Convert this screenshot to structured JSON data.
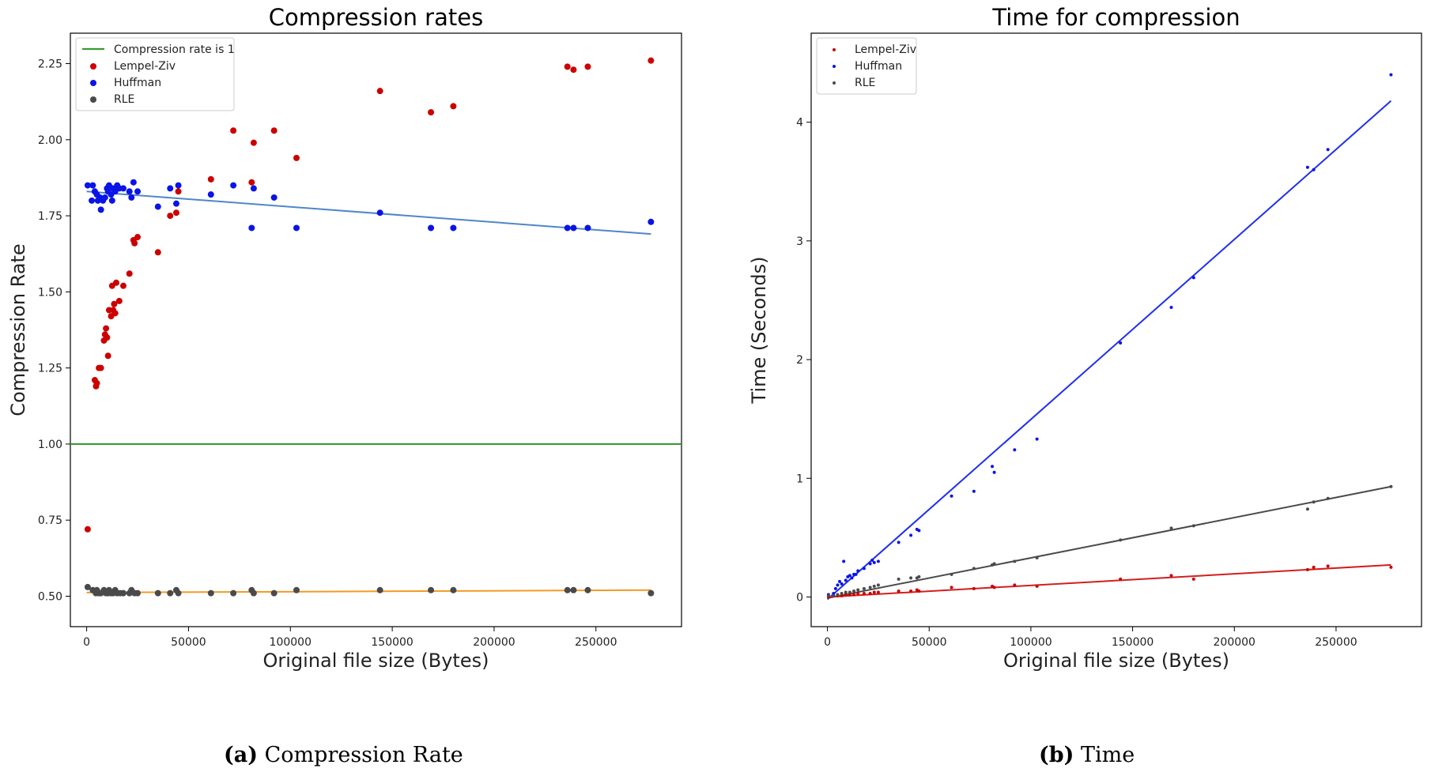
{
  "captions": {
    "a_label": "(a)",
    "a_text": "Compression Rate",
    "b_label": "(b)",
    "b_text": "Time"
  },
  "chart_data": [
    {
      "type": "scatter",
      "title": "Compression rates",
      "xlabel": "Original file size (Bytes)",
      "ylabel": "Compression Rate",
      "xlim": [
        -8000,
        292000
      ],
      "ylim": [
        0.4,
        2.35
      ],
      "xticks": [
        0,
        50000,
        100000,
        150000,
        200000,
        250000
      ],
      "yticks": [
        0.5,
        0.75,
        1.0,
        1.25,
        1.5,
        1.75,
        2.0,
        2.25
      ],
      "ytick_decimals": 2,
      "grid": false,
      "legend_position": "top-left",
      "legend_order": [
        "Compression rate is 1",
        "Lempel-Ziv",
        "Huffman",
        "RLE"
      ],
      "hlines": [
        {
          "name": "Compression rate is 1",
          "y": 1.0,
          "color": "#3a9a32"
        }
      ],
      "series": [
        {
          "name": "Lempel-Ziv",
          "color": "#cc0000",
          "marker_r": 4,
          "points": [
            [
              500,
              0.72
            ],
            [
              4000,
              1.21
            ],
            [
              4600,
              1.19
            ],
            [
              5000,
              1.2
            ],
            [
              6000,
              1.25
            ],
            [
              7000,
              1.25
            ],
            [
              8500,
              1.34
            ],
            [
              9000,
              1.36
            ],
            [
              9500,
              1.38
            ],
            [
              10000,
              1.35
            ],
            [
              10500,
              1.29
            ],
            [
              11000,
              1.44
            ],
            [
              12000,
              1.42
            ],
            [
              12500,
              1.52
            ],
            [
              13000,
              1.44
            ],
            [
              13500,
              1.46
            ],
            [
              14000,
              1.43
            ],
            [
              14500,
              1.53
            ],
            [
              16000,
              1.47
            ],
            [
              18000,
              1.52
            ],
            [
              21000,
              1.56
            ],
            [
              23000,
              1.67
            ],
            [
              23500,
              1.66
            ],
            [
              25000,
              1.68
            ],
            [
              35000,
              1.63
            ],
            [
              41000,
              1.75
            ],
            [
              44000,
              1.76
            ],
            [
              45000,
              1.83
            ],
            [
              61000,
              1.87
            ],
            [
              72000,
              2.03
            ],
            [
              81000,
              1.86
            ],
            [
              82000,
              1.99
            ],
            [
              92000,
              2.03
            ],
            [
              103000,
              1.94
            ],
            [
              144000,
              2.16
            ],
            [
              169000,
              2.09
            ],
            [
              180000,
              2.11
            ],
            [
              236000,
              2.24
            ],
            [
              239000,
              2.23
            ],
            [
              246000,
              2.24
            ],
            [
              277000,
              2.26
            ]
          ]
        },
        {
          "name": "Huffman",
          "color": "#0a14e6",
          "marker_r": 4,
          "points": [
            [
              500,
              1.85
            ],
            [
              2500,
              1.8
            ],
            [
              3000,
              1.85
            ],
            [
              4000,
              1.83
            ],
            [
              5000,
              1.82
            ],
            [
              5500,
              1.8
            ],
            [
              6500,
              1.81
            ],
            [
              7000,
              1.77
            ],
            [
              8000,
              1.8
            ],
            [
              9000,
              1.81
            ],
            [
              10000,
              1.84
            ],
            [
              10500,
              1.83
            ],
            [
              11000,
              1.85
            ],
            [
              12000,
              1.82
            ],
            [
              12500,
              1.8
            ],
            [
              13000,
              1.84
            ],
            [
              14000,
              1.83
            ],
            [
              15000,
              1.85
            ],
            [
              16000,
              1.84
            ],
            [
              18000,
              1.84
            ],
            [
              21000,
              1.83
            ],
            [
              22000,
              1.81
            ],
            [
              23000,
              1.86
            ],
            [
              25000,
              1.83
            ],
            [
              35000,
              1.78
            ],
            [
              41000,
              1.84
            ],
            [
              44000,
              1.79
            ],
            [
              45000,
              1.85
            ],
            [
              61000,
              1.82
            ],
            [
              72000,
              1.85
            ],
            [
              81000,
              1.71
            ],
            [
              82000,
              1.84
            ],
            [
              92000,
              1.81
            ],
            [
              103000,
              1.71
            ],
            [
              144000,
              1.76
            ],
            [
              169000,
              1.71
            ],
            [
              180000,
              1.71
            ],
            [
              236000,
              1.71
            ],
            [
              239000,
              1.71
            ],
            [
              246000,
              1.71
            ],
            [
              277000,
              1.73
            ]
          ]
        },
        {
          "name": "RLE",
          "color": "#4a4a4a",
          "marker_r": 4,
          "points": [
            [
              500,
              0.53
            ],
            [
              3000,
              0.52
            ],
            [
              4500,
              0.51
            ],
            [
              5000,
              0.52
            ],
            [
              6000,
              0.51
            ],
            [
              7000,
              0.51
            ],
            [
              8500,
              0.52
            ],
            [
              9500,
              0.51
            ],
            [
              10500,
              0.51
            ],
            [
              11000,
              0.52
            ],
            [
              12000,
              0.51
            ],
            [
              13000,
              0.51
            ],
            [
              14000,
              0.52
            ],
            [
              15000,
              0.51
            ],
            [
              16500,
              0.51
            ],
            [
              18000,
              0.51
            ],
            [
              21000,
              0.51
            ],
            [
              22000,
              0.52
            ],
            [
              23500,
              0.51
            ],
            [
              25000,
              0.51
            ],
            [
              35000,
              0.51
            ],
            [
              41000,
              0.51
            ],
            [
              44000,
              0.52
            ],
            [
              45000,
              0.51
            ],
            [
              61000,
              0.51
            ],
            [
              72000,
              0.51
            ],
            [
              81000,
              0.52
            ],
            [
              82000,
              0.51
            ],
            [
              92000,
              0.51
            ],
            [
              103000,
              0.52
            ],
            [
              144000,
              0.52
            ],
            [
              169000,
              0.52
            ],
            [
              180000,
              0.52
            ],
            [
              236000,
              0.52
            ],
            [
              239000,
              0.52
            ],
            [
              246000,
              0.52
            ],
            [
              277000,
              0.51
            ]
          ]
        }
      ],
      "fit_lines": [
        {
          "color": "#4f86c9",
          "from": [
            0,
            1.83
          ],
          "to": [
            277000,
            1.69
          ]
        },
        {
          "color": "#f39a24",
          "from": [
            0,
            0.512
          ],
          "to": [
            277000,
            0.52
          ]
        }
      ]
    },
    {
      "type": "scatter",
      "title": "Time for compression",
      "xlabel": "Original file size (Bytes)",
      "ylabel": "Time (Seconds)",
      "xlim": [
        -8000,
        292000
      ],
      "ylim": [
        -0.25,
        4.75
      ],
      "xticks": [
        0,
        50000,
        100000,
        150000,
        200000,
        250000
      ],
      "yticks": [
        0,
        1,
        2,
        3,
        4
      ],
      "ytick_decimals": 0,
      "grid": false,
      "legend_position": "top-left",
      "legend_order": [
        "Lempel-Ziv",
        "Huffman",
        "RLE"
      ],
      "hlines": [],
      "series": [
        {
          "name": "Lempel-Ziv",
          "color": "#cc0000",
          "marker_r": 2,
          "points": [
            [
              500,
              0.0
            ],
            [
              3000,
              0.01
            ],
            [
              5000,
              0.01
            ],
            [
              7000,
              0.01
            ],
            [
              9000,
              0.02
            ],
            [
              11000,
              0.02
            ],
            [
              13000,
              0.02
            ],
            [
              15000,
              0.03
            ],
            [
              18000,
              0.03
            ],
            [
              21000,
              0.03
            ],
            [
              23000,
              0.04
            ],
            [
              25000,
              0.04
            ],
            [
              35000,
              0.05
            ],
            [
              41000,
              0.05
            ],
            [
              44000,
              0.06
            ],
            [
              45000,
              0.05
            ],
            [
              61000,
              0.08
            ],
            [
              72000,
              0.07
            ],
            [
              81000,
              0.09
            ],
            [
              82000,
              0.08
            ],
            [
              92000,
              0.1
            ],
            [
              103000,
              0.09
            ],
            [
              144000,
              0.15
            ],
            [
              169000,
              0.18
            ],
            [
              180000,
              0.15
            ],
            [
              236000,
              0.23
            ],
            [
              239000,
              0.25
            ],
            [
              246000,
              0.26
            ],
            [
              277000,
              0.25
            ]
          ]
        },
        {
          "name": "Huffman",
          "color": "#0a14e6",
          "marker_r": 2,
          "points": [
            [
              500,
              0.02
            ],
            [
              3000,
              0.03
            ],
            [
              4000,
              0.07
            ],
            [
              5000,
              0.1
            ],
            [
              6000,
              0.13
            ],
            [
              7000,
              0.11
            ],
            [
              8000,
              0.3
            ],
            [
              9000,
              0.14
            ],
            [
              10000,
              0.17
            ],
            [
              11000,
              0.18
            ],
            [
              12000,
              0.16
            ],
            [
              13000,
              0.19
            ],
            [
              14000,
              0.19
            ],
            [
              15000,
              0.22
            ],
            [
              18000,
              0.24
            ],
            [
              21000,
              0.28
            ],
            [
              22000,
              0.31
            ],
            [
              23000,
              0.29
            ],
            [
              25000,
              0.3
            ],
            [
              35000,
              0.46
            ],
            [
              41000,
              0.52
            ],
            [
              44000,
              0.57
            ],
            [
              45000,
              0.56
            ],
            [
              61000,
              0.85
            ],
            [
              72000,
              0.89
            ],
            [
              81000,
              1.1
            ],
            [
              82000,
              1.05
            ],
            [
              92000,
              1.24
            ],
            [
              103000,
              1.33
            ],
            [
              144000,
              2.14
            ],
            [
              169000,
              2.44
            ],
            [
              180000,
              2.69
            ],
            [
              236000,
              3.62
            ],
            [
              239000,
              3.6
            ],
            [
              246000,
              3.77
            ],
            [
              277000,
              4.4
            ]
          ]
        },
        {
          "name": "RLE",
          "color": "#4a4a4a",
          "marker_r": 2,
          "points": [
            [
              500,
              0.01
            ],
            [
              3000,
              0.01
            ],
            [
              5000,
              0.02
            ],
            [
              7000,
              0.03
            ],
            [
              9000,
              0.04
            ],
            [
              11000,
              0.04
            ],
            [
              13000,
              0.05
            ],
            [
              15000,
              0.06
            ],
            [
              18000,
              0.07
            ],
            [
              21000,
              0.08
            ],
            [
              23000,
              0.09
            ],
            [
              25000,
              0.1
            ],
            [
              35000,
              0.15
            ],
            [
              41000,
              0.16
            ],
            [
              44000,
              0.16
            ],
            [
              45000,
              0.17
            ],
            [
              61000,
              0.19
            ],
            [
              72000,
              0.24
            ],
            [
              81000,
              0.27
            ],
            [
              82000,
              0.28
            ],
            [
              92000,
              0.3
            ],
            [
              103000,
              0.33
            ],
            [
              144000,
              0.48
            ],
            [
              169000,
              0.58
            ],
            [
              180000,
              0.6
            ],
            [
              236000,
              0.74
            ],
            [
              239000,
              0.8
            ],
            [
              246000,
              0.83
            ],
            [
              277000,
              0.93
            ]
          ]
        }
      ],
      "fit_lines": [
        {
          "color": "#1e2ef0",
          "from": [
            0,
            -0.02
          ],
          "to": [
            277000,
            4.18
          ]
        },
        {
          "color": "#4a4a4a",
          "from": [
            0,
            -0.01
          ],
          "to": [
            277000,
            0.93
          ]
        },
        {
          "color": "#d41e1e",
          "from": [
            0,
            0.0
          ],
          "to": [
            277000,
            0.27
          ]
        }
      ]
    }
  ]
}
